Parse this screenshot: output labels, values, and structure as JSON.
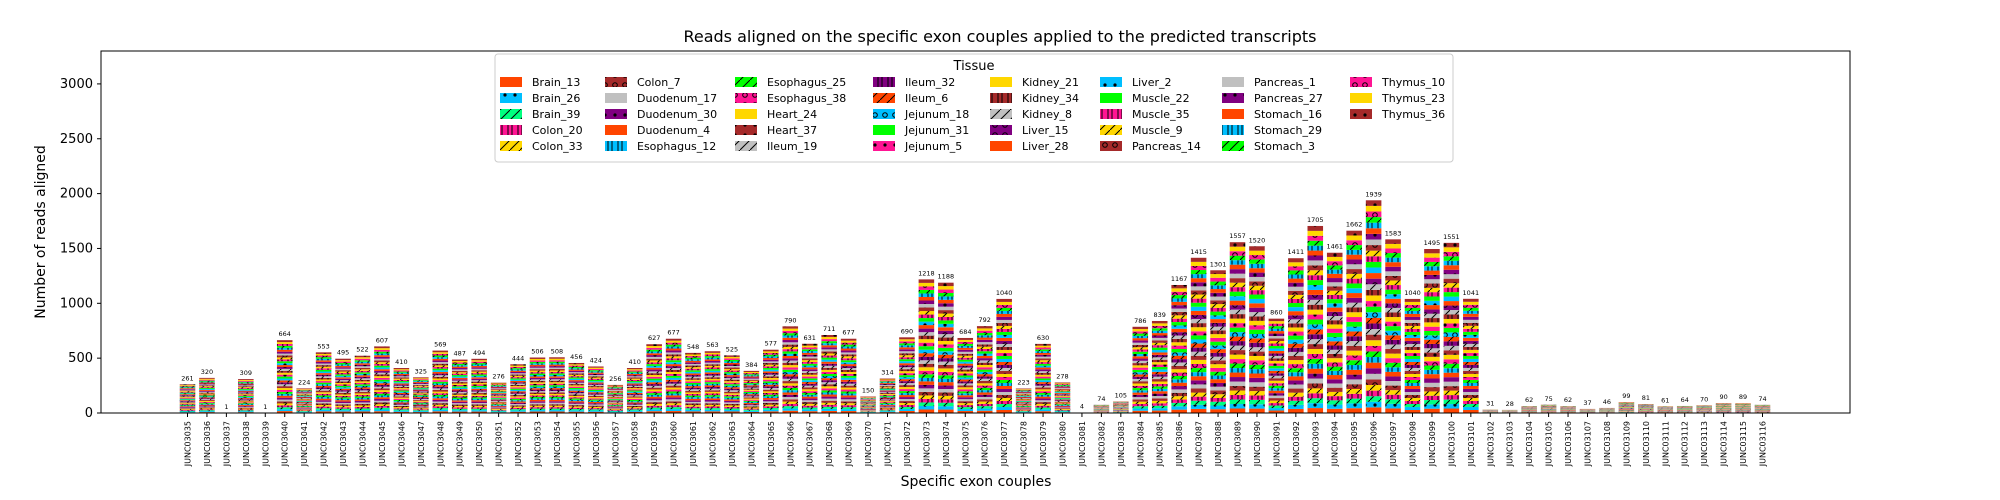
{
  "chart_data": {
    "type": "bar",
    "stacked": true,
    "title": "Reads aligned on the specific exon couples applied to the predicted transcripts",
    "xlabel": "Specific exon couples",
    "ylabel": "Number of reads aligned",
    "ylim": [
      0,
      3300
    ],
    "yticks": [
      0,
      500,
      1000,
      1500,
      2000,
      2500,
      3000
    ],
    "grid": false,
    "legend": {
      "title": "Tissue",
      "placement": "top-center",
      "entries": [
        {
          "name": "Brain_13",
          "color": "#ff4500",
          "hatch": ""
        },
        {
          "name": "Brain_26",
          "color": "#00bfff",
          "hatch": "dot"
        },
        {
          "name": "Brain_39",
          "color": "#00ff7f",
          "hatch": "slash"
        },
        {
          "name": "Colon_20",
          "color": "#ff1493",
          "hatch": "bar"
        },
        {
          "name": "Colon_33",
          "color": "#ffd700",
          "hatch": "slash"
        },
        {
          "name": "Colon_7",
          "color": "#a52a2a",
          "hatch": "ring"
        },
        {
          "name": "Duodenum_17",
          "color": "#c0c0c0",
          "hatch": ""
        },
        {
          "name": "Duodenum_30",
          "color": "#800080",
          "hatch": "dot"
        },
        {
          "name": "Duodenum_4",
          "color": "#ff4500",
          "hatch": ""
        },
        {
          "name": "Esophagus_12",
          "color": "#00bfff",
          "hatch": "bar"
        },
        {
          "name": "Esophagus_25",
          "color": "#00ff00",
          "hatch": "slash"
        },
        {
          "name": "Esophagus_38",
          "color": "#ff1493",
          "hatch": "ring"
        },
        {
          "name": "Heart_24",
          "color": "#ffd700",
          "hatch": ""
        },
        {
          "name": "Heart_37",
          "color": "#a52a2a",
          "hatch": "dot"
        },
        {
          "name": "Ileum_19",
          "color": "#c0c0c0",
          "hatch": "slash"
        },
        {
          "name": "Ileum_32",
          "color": "#800080",
          "hatch": "bar"
        },
        {
          "name": "Ileum_6",
          "color": "#ff4500",
          "hatch": "slash"
        },
        {
          "name": "Jejunum_18",
          "color": "#00bfff",
          "hatch": "ring"
        },
        {
          "name": "Jejunum_31",
          "color": "#00ff00",
          "hatch": ""
        },
        {
          "name": "Jejunum_5",
          "color": "#ff1493",
          "hatch": "dot"
        },
        {
          "name": "Kidney_21",
          "color": "#ffd700",
          "hatch": ""
        },
        {
          "name": "Kidney_34",
          "color": "#a52a2a",
          "hatch": "bar"
        },
        {
          "name": "Kidney_8",
          "color": "#c0c0c0",
          "hatch": "slash"
        },
        {
          "name": "Liver_15",
          "color": "#800080",
          "hatch": "ring"
        },
        {
          "name": "Liver_28",
          "color": "#ff4500",
          "hatch": ""
        },
        {
          "name": "Liver_2",
          "color": "#00bfff",
          "hatch": "dot"
        },
        {
          "name": "Muscle_22",
          "color": "#00ff00",
          "hatch": ""
        },
        {
          "name": "Muscle_35",
          "color": "#ff1493",
          "hatch": "bar"
        },
        {
          "name": "Muscle_9",
          "color": "#ffd700",
          "hatch": "slash"
        },
        {
          "name": "Pancreas_14",
          "color": "#a52a2a",
          "hatch": "ring"
        },
        {
          "name": "Pancreas_1",
          "color": "#c0c0c0",
          "hatch": ""
        },
        {
          "name": "Pancreas_27",
          "color": "#800080",
          "hatch": "dot"
        },
        {
          "name": "Stomach_16",
          "color": "#ff4500",
          "hatch": ""
        },
        {
          "name": "Stomach_29",
          "color": "#00bfff",
          "hatch": "bar"
        },
        {
          "name": "Stomach_3",
          "color": "#00ff00",
          "hatch": "slash"
        },
        {
          "name": "Thymus_10",
          "color": "#ff1493",
          "hatch": "ring"
        },
        {
          "name": "Thymus_23",
          "color": "#ffd700",
          "hatch": ""
        },
        {
          "name": "Thymus_36",
          "color": "#a52a2a",
          "hatch": "dot"
        }
      ]
    },
    "categories": [
      "JUNC03035",
      "JUNC03036",
      "JUNC03037",
      "JUNC03038",
      "JUNC03039",
      "JUNC03040",
      "JUNC03041",
      "JUNC03042",
      "JUNC03043",
      "JUNC03044",
      "JUNC03045",
      "JUNC03046",
      "JUNC03047",
      "JUNC03048",
      "JUNC03049",
      "JUNC03050",
      "JUNC03051",
      "JUNC03052",
      "JUNC03053",
      "JUNC03054",
      "JUNC03055",
      "JUNC03056",
      "JUNC03057",
      "JUNC03058",
      "JUNC03059",
      "JUNC03060",
      "JUNC03061",
      "JUNC03062",
      "JUNC03063",
      "JUNC03064",
      "JUNC03065",
      "JUNC03066",
      "JUNC03067",
      "JUNC03068",
      "JUNC03069",
      "JUNC03070",
      "JUNC03071",
      "JUNC03072",
      "JUNC03073",
      "JUNC03074",
      "JUNC03075",
      "JUNC03076",
      "JUNC03077",
      "JUNC03078",
      "JUNC03079",
      "JUNC03080",
      "JUNC03081",
      "JUNC03082",
      "JUNC03083",
      "JUNC03084",
      "JUNC03085",
      "JUNC03086",
      "JUNC03087",
      "JUNC03088",
      "JUNC03089",
      "JUNC03090",
      "JUNC03091",
      "JUNC03092",
      "JUNC03093",
      "JUNC03094",
      "JUNC03095",
      "JUNC03096",
      "JUNC03097",
      "JUNC03098",
      "JUNC03099",
      "JUNC03100",
      "JUNC03101",
      "JUNC03102",
      "JUNC03103",
      "JUNC03104",
      "JUNC03105",
      "JUNC03106",
      "JUNC03107",
      "JUNC03108",
      "JUNC03109",
      "JUNC03110",
      "JUNC03111",
      "JUNC03112",
      "JUNC03113",
      "JUNC03114",
      "JUNC03115",
      "JUNC03116"
    ],
    "totals": [
      261,
      320,
      1,
      309,
      1,
      664,
      224,
      553,
      495,
      522,
      607,
      410,
      325,
      569,
      487,
      494,
      276,
      444,
      506,
      508,
      456,
      424,
      256,
      410,
      627,
      677,
      548,
      563,
      525,
      384,
      577,
      790,
      631,
      711,
      677,
      150,
      314,
      690,
      1218,
      1188,
      684,
      792,
      1040,
      223,
      630,
      278,
      4,
      74,
      105,
      786,
      839,
      1167,
      1415,
      1301,
      1557,
      1520,
      860,
      1411,
      1705,
      1461,
      1662,
      1939,
      1583,
      1040,
      1495,
      1551,
      1041,
      31,
      28,
      62,
      75,
      62,
      37,
      46,
      99,
      81,
      61,
      64,
      70,
      90,
      89,
      74
    ],
    "total_labels": [
      "261",
      "320",
      "1",
      "309",
      "1",
      "664",
      "224",
      "553",
      "495",
      "522",
      "607",
      "410",
      "325",
      "569",
      "487",
      "494",
      "276",
      "444",
      "506",
      "508",
      "456",
      "424",
      "256",
      "410",
      "627",
      "677",
      "548",
      "563",
      "525",
      "384",
      "577",
      "790",
      "631",
      "711",
      "677",
      "150",
      "314",
      "690",
      "1218",
      "1188",
      "684",
      "792",
      "1040",
      "223",
      "630",
      "278",
      "4",
      "74",
      "105",
      "786",
      "839",
      "1167",
      "1415",
      "1301",
      "1557",
      "1520",
      "860",
      "1411",
      "1705",
      "1461",
      "1662",
      "1939",
      "1583",
      "1040",
      "1495",
      "1551",
      "1041",
      "31",
      "28",
      "62",
      "75",
      "62",
      "37",
      "46",
      "99",
      "81",
      "61",
      "64",
      "70",
      "90",
      "89",
      "74"
    ],
    "note_series": "Each bar is a stack of the 38 tissue series; segment values are roughly equal shares of the printed total."
  }
}
